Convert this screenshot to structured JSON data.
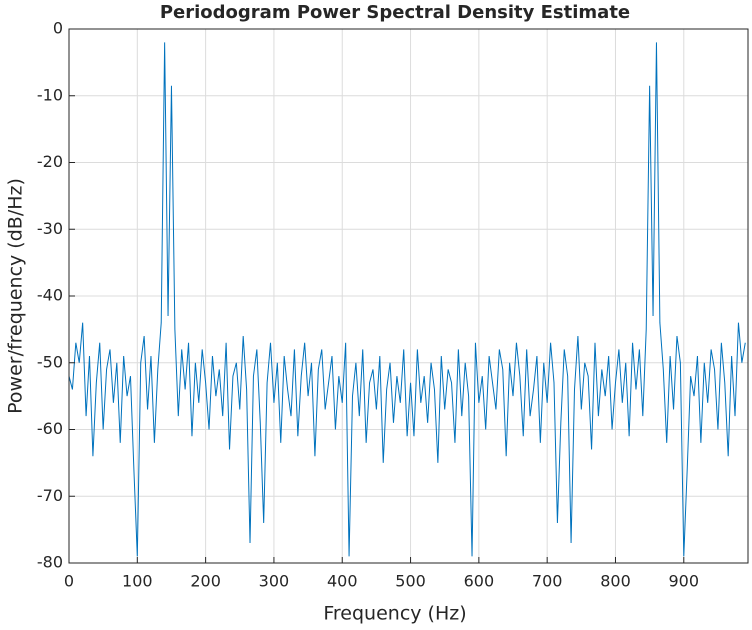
{
  "chart_data": {
    "type": "line",
    "title": "Periodogram Power Spectral Density Estimate",
    "x_label": "Frequency (Hz)",
    "y_label": "Power/frequency (dB/Hz)",
    "xlim": [
      0,
      994
    ],
    "ylim": [
      -80,
      0
    ],
    "xticks": [
      0,
      100,
      200,
      300,
      400,
      500,
      600,
      700,
      800,
      900
    ],
    "yticks": [
      0,
      -10,
      -20,
      -30,
      -40,
      -50,
      -60,
      -70,
      -80
    ],
    "grid": true,
    "series": [
      {
        "color": "#0072bd",
        "x": [
          0,
          5,
          10,
          15,
          20,
          25,
          30,
          35,
          40,
          45,
          50,
          55,
          60,
          65,
          70,
          75,
          80,
          85,
          90,
          95,
          100,
          105,
          110,
          115,
          120,
          125,
          130,
          135,
          140,
          145,
          150,
          155,
          160,
          165,
          170,
          175,
          180,
          185,
          190,
          195,
          200,
          205,
          210,
          215,
          220,
          225,
          230,
          235,
          240,
          245,
          250,
          255,
          260,
          265,
          270,
          275,
          280,
          285,
          290,
          295,
          300,
          305,
          310,
          315,
          320,
          325,
          330,
          335,
          340,
          345,
          350,
          355,
          360,
          365,
          370,
          375,
          380,
          385,
          390,
          395,
          400,
          405,
          410,
          415,
          420,
          425,
          430,
          435,
          440,
          445,
          450,
          455,
          460,
          465,
          470,
          475,
          480,
          485,
          490,
          495,
          500,
          505,
          510,
          515,
          520,
          525,
          530,
          535,
          540,
          545,
          550,
          555,
          560,
          565,
          570,
          575,
          580,
          585,
          590,
          595,
          600,
          605,
          610,
          615,
          620,
          625,
          630,
          635,
          640,
          645,
          650,
          655,
          660,
          665,
          670,
          675,
          680,
          685,
          690,
          695,
          700,
          705,
          710,
          715,
          720,
          725,
          730,
          735,
          740,
          745,
          750,
          755,
          760,
          765,
          770,
          775,
          780,
          785,
          790,
          795,
          800,
          805,
          810,
          815,
          820,
          825,
          830,
          835,
          840,
          845,
          850,
          855,
          860,
          865,
          870,
          875,
          880,
          885,
          890,
          895,
          900,
          905,
          910,
          915,
          920,
          925,
          930,
          935,
          940,
          945,
          950,
          955,
          960,
          965,
          970,
          975,
          980,
          985,
          990
        ],
        "values": [
          -52,
          -54,
          -47,
          -50,
          -44,
          -58,
          -49,
          -64,
          -53,
          -47,
          -60,
          -51,
          -48,
          -56,
          -50,
          -62,
          -49,
          -55,
          -52,
          -66,
          -79,
          -50,
          -46,
          -57,
          -49,
          -62,
          -51,
          -44,
          -2,
          -43,
          -8.5,
          -45,
          -58,
          -48,
          -54,
          -47,
          -61,
          -50,
          -56,
          -48,
          -53,
          -60,
          -49,
          -55,
          -51,
          -58,
          -47,
          -63,
          -52,
          -50,
          -57,
          -46,
          -54,
          -77,
          -52,
          -48,
          -59,
          -74,
          -53,
          -47,
          -56,
          -50,
          -62,
          -49,
          -54,
          -58,
          -48,
          -61,
          -52,
          -47,
          -55,
          -50,
          -64,
          -51,
          -48,
          -57,
          -53,
          -49,
          -60,
          -52,
          -56,
          -47,
          -79,
          -55,
          -50,
          -58,
          -48,
          -62,
          -53,
          -51,
          -57,
          -49,
          -65,
          -54,
          -50,
          -59,
          -52,
          -56,
          -48,
          -61,
          -53,
          -61,
          -48,
          -56,
          -52,
          -59,
          -50,
          -54,
          -65,
          -49,
          -57,
          -51,
          -53,
          -62,
          -48,
          -58,
          -50,
          -55,
          -79,
          -47,
          -56,
          -52,
          -60,
          -49,
          -53,
          -57,
          -48,
          -51,
          -64,
          -50,
          -55,
          -47,
          -52,
          -61,
          -48,
          -58,
          -54,
          -49,
          -62,
          -50,
          -56,
          -47,
          -53,
          -74,
          -59,
          -48,
          -52,
          -77,
          -54,
          -46,
          -57,
          -50,
          -52,
          -63,
          -47,
          -58,
          -51,
          -55,
          -49,
          -60,
          -53,
          -48,
          -56,
          -50,
          -61,
          -47,
          -54,
          -48,
          -58,
          -45,
          -8.5,
          -43,
          -2,
          -44,
          -51,
          -62,
          -49,
          -57,
          -46,
          -50,
          -79,
          -66,
          -52,
          -55,
          -49,
          -62,
          -50,
          -56,
          -48,
          -51,
          -60,
          -47,
          -53,
          -64,
          -49,
          -58,
          -44,
          -50,
          -47
        ]
      }
    ]
  }
}
